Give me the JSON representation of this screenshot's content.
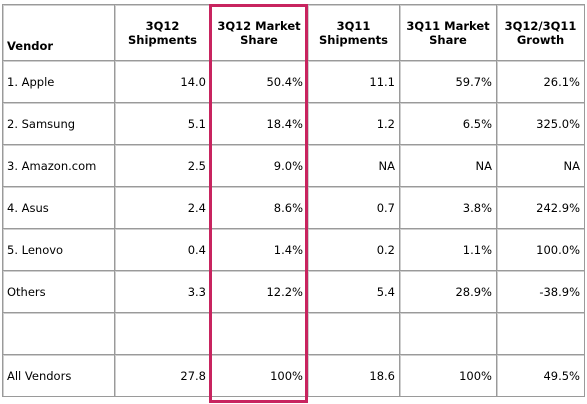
{
  "table": {
    "headers": [
      "Vendor",
      "3Q12 Shipments",
      "3Q12 Market Share",
      "3Q11 Shipments",
      "3Q11 Market Share",
      "3Q12/3Q11 Growth"
    ],
    "rows": [
      [
        "1. Apple",
        "14.0",
        "50.4%",
        "11.1",
        "59.7%",
        "26.1%"
      ],
      [
        "2. Samsung",
        "5.1",
        "18.4%",
        "1.2",
        "6.5%",
        "325.0%"
      ],
      [
        "3. Amazon.com",
        "2.5",
        "9.0%",
        "NA",
        "NA",
        "NA"
      ],
      [
        "4. Asus",
        "2.4",
        "8.6%",
        "0.7",
        "3.8%",
        "242.9%"
      ],
      [
        "5. Lenovo",
        "0.4",
        "1.4%",
        "0.2",
        "1.1%",
        "100.0%"
      ],
      [
        "Others",
        "3.3",
        "12.2%",
        "5.4",
        "28.9%",
        "-38.9%"
      ],
      [
        "",
        "",
        "",
        "",
        "",
        ""
      ],
      [
        "All Vendors",
        "27.8",
        "100%",
        "18.6",
        "100%",
        "49.5%"
      ]
    ]
  },
  "highlight": {
    "column": "3Q12 Market Share",
    "color": "#c8245f"
  }
}
